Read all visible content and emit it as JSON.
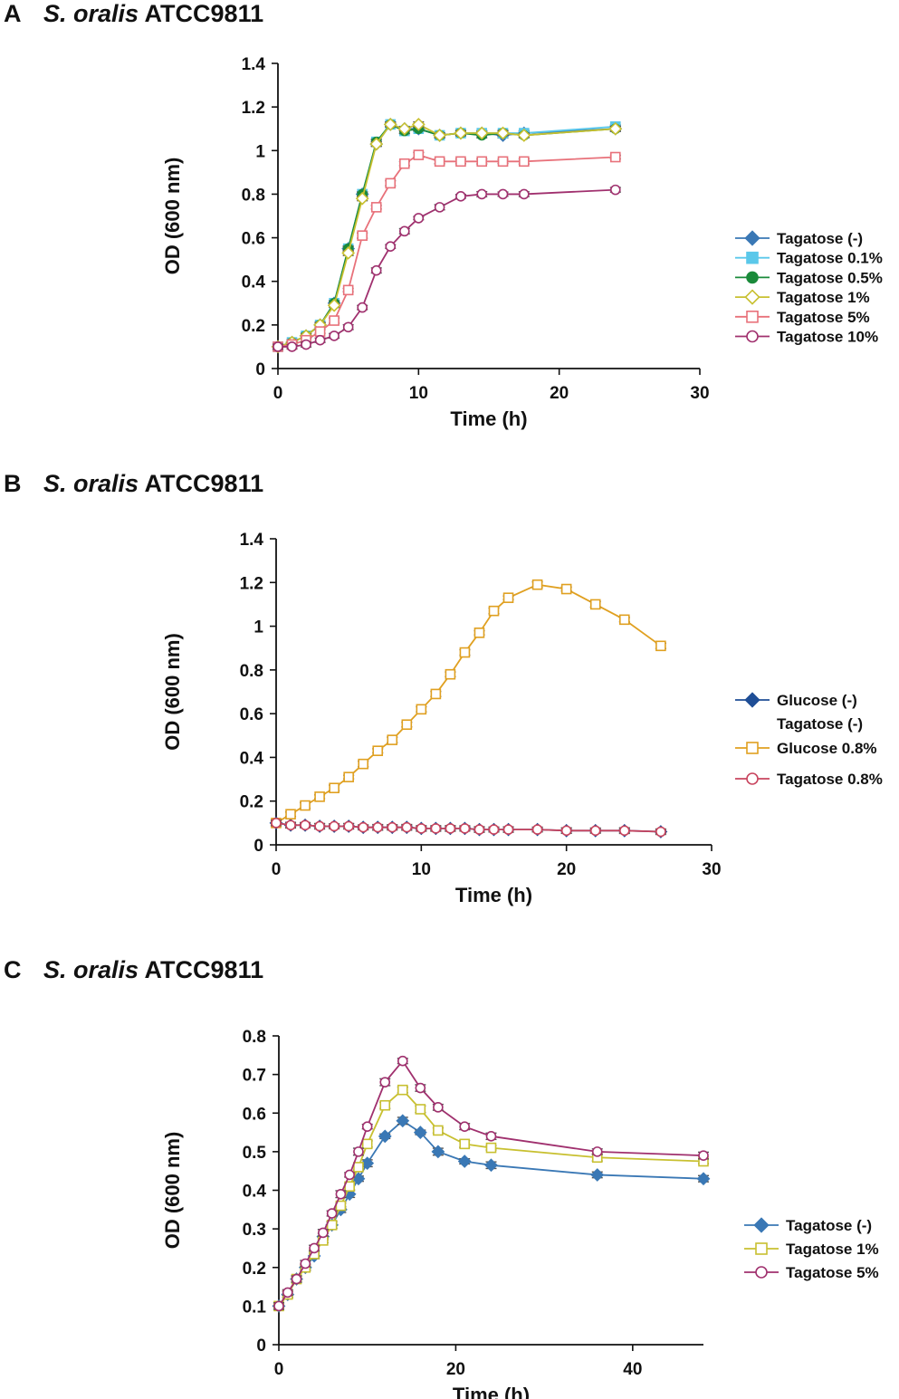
{
  "chart_data": [
    {
      "panel": "A",
      "type": "line",
      "title_species": "S. oralis",
      "title_strain": "ATCC9811",
      "xlabel": "Time (h)",
      "ylabel": "OD (600 nm)",
      "xlim": [
        0,
        30
      ],
      "ylim": [
        0,
        1.4
      ],
      "xticks": [
        0,
        10,
        20,
        30
      ],
      "yticks": [
        0,
        0.2,
        0.4,
        0.6,
        0.8,
        1,
        1.2,
        1.4
      ],
      "ytick_labels": [
        "0",
        "0.2",
        "0.4",
        "0.6",
        "0.8",
        "1",
        "1.2",
        "1.4"
      ],
      "x": [
        0,
        1,
        2,
        3,
        4,
        5,
        6,
        7,
        8,
        9,
        10,
        11.5,
        13,
        14.5,
        16,
        17.5,
        24
      ],
      "series": [
        {
          "name": "Tagatose    (-)",
          "color": "#3a78b5",
          "marker": "diamond",
          "fill": true,
          "values": [
            0.1,
            0.12,
            0.15,
            0.2,
            0.3,
            0.55,
            0.8,
            1.03,
            1.12,
            1.1,
            1.1,
            1.07,
            1.08,
            1.08,
            1.07,
            1.08,
            1.1
          ]
        },
        {
          "name": "Tagatose 0.1%",
          "color": "#5bc8ea",
          "marker": "square",
          "fill": true,
          "values": [
            0.1,
            0.12,
            0.15,
            0.2,
            0.3,
            0.55,
            0.8,
            1.04,
            1.12,
            1.09,
            1.1,
            1.07,
            1.08,
            1.08,
            1.08,
            1.08,
            1.11
          ]
        },
        {
          "name": "Tagatose 0.5%",
          "color": "#1a8a3a",
          "marker": "circle",
          "fill": true,
          "values": [
            0.1,
            0.12,
            0.15,
            0.2,
            0.3,
            0.55,
            0.8,
            1.04,
            1.12,
            1.09,
            1.1,
            1.07,
            1.08,
            1.07,
            1.08,
            1.07,
            1.1
          ]
        },
        {
          "name": "Tagatose    1%",
          "color": "#c8c030",
          "marker": "diamond",
          "fill": false,
          "values": [
            0.1,
            0.12,
            0.15,
            0.2,
            0.29,
            0.53,
            0.78,
            1.03,
            1.12,
            1.1,
            1.12,
            1.07,
            1.08,
            1.08,
            1.08,
            1.07,
            1.1
          ]
        },
        {
          "name": "Tagatose    5%",
          "color": "#e8717a",
          "marker": "square",
          "fill": false,
          "values": [
            0.1,
            0.11,
            0.13,
            0.17,
            0.22,
            0.36,
            0.61,
            0.74,
            0.85,
            0.94,
            0.98,
            0.95,
            0.95,
            0.95,
            0.95,
            0.95,
            0.97
          ]
        },
        {
          "name": "Tagatose  10%",
          "color": "#a0306e",
          "marker": "circle",
          "fill": false,
          "values": [
            0.1,
            0.1,
            0.11,
            0.13,
            0.15,
            0.19,
            0.28,
            0.45,
            0.56,
            0.63,
            0.69,
            0.74,
            0.79,
            0.8,
            0.8,
            0.8,
            0.82
          ]
        }
      ]
    },
    {
      "panel": "B",
      "type": "line",
      "title_species": "S. oralis",
      "title_strain": "ATCC9811",
      "xlabel": "Time (h)",
      "ylabel": "OD (600 nm)",
      "xlim": [
        0,
        30
      ],
      "ylim": [
        0,
        1.4
      ],
      "xticks": [
        0,
        10,
        20,
        30
      ],
      "yticks": [
        0,
        0.2,
        0.4,
        0.6,
        0.8,
        1,
        1.2,
        1.4
      ],
      "ytick_labels": [
        "0",
        "0.2",
        "0.4",
        "0.6",
        "0.8",
        "1",
        "1.2",
        "1.4"
      ],
      "series": [
        {
          "name": "Glucose (-)",
          "name2": "Tagatose (-)",
          "color": "#1f4e96",
          "marker": "diamond",
          "fill": true,
          "x": [
            0,
            1,
            2,
            3,
            4,
            5,
            6,
            7,
            8,
            9,
            10,
            11,
            12,
            13,
            14,
            15,
            16,
            18,
            20,
            22,
            24,
            26.5
          ],
          "values": [
            0.1,
            0.09,
            0.09,
            0.085,
            0.085,
            0.085,
            0.08,
            0.08,
            0.08,
            0.08,
            0.075,
            0.075,
            0.075,
            0.075,
            0.07,
            0.07,
            0.07,
            0.07,
            0.065,
            0.065,
            0.065,
            0.06
          ]
        },
        {
          "name": "Glucose 0.8%",
          "color": "#e0a020",
          "marker": "square",
          "fill": false,
          "x": [
            0,
            1,
            2,
            3,
            4,
            5,
            6,
            7,
            8,
            9,
            10,
            11,
            12,
            13,
            14,
            15,
            16,
            18,
            20,
            22,
            24,
            26.5
          ],
          "values": [
            0.1,
            0.14,
            0.18,
            0.22,
            0.26,
            0.31,
            0.37,
            0.43,
            0.48,
            0.55,
            0.62,
            0.69,
            0.78,
            0.88,
            0.97,
            1.07,
            1.13,
            1.19,
            1.17,
            1.1,
            1.03,
            0.91
          ]
        },
        {
          "name": "Tagatose 0.8%",
          "color": "#c8445e",
          "marker": "circle",
          "fill": false,
          "x": [
            0,
            1,
            2,
            3,
            4,
            5,
            6,
            7,
            8,
            9,
            10,
            11,
            12,
            13,
            14,
            15,
            16,
            18,
            20,
            22,
            24,
            26.5
          ],
          "values": [
            0.1,
            0.09,
            0.09,
            0.085,
            0.085,
            0.085,
            0.08,
            0.08,
            0.08,
            0.08,
            0.075,
            0.075,
            0.075,
            0.075,
            0.07,
            0.07,
            0.07,
            0.07,
            0.065,
            0.065,
            0.065,
            0.06
          ]
        }
      ]
    },
    {
      "panel": "C",
      "type": "line",
      "title_species": "S. oralis",
      "title_strain": "ATCC9811",
      "xlabel": "Time (h)",
      "ylabel": "OD (600 nm)",
      "xlim": [
        0,
        48
      ],
      "ylim": [
        0,
        0.8
      ],
      "xticks": [
        0,
        20,
        40
      ],
      "yticks": [
        0,
        0.1,
        0.2,
        0.3,
        0.4,
        0.5,
        0.6,
        0.7,
        0.8
      ],
      "ytick_labels": [
        "0",
        "0.1",
        "0.2",
        "0.3",
        "0.4",
        "0.5",
        "0.6",
        "0.7",
        "0.8"
      ],
      "x": [
        0,
        1,
        2,
        3,
        4,
        5,
        6,
        7,
        8,
        9,
        10,
        12,
        14,
        16,
        18,
        21,
        24,
        36,
        48
      ],
      "series": [
        {
          "name": "Tagatose (-)",
          "color": "#3a78b5",
          "marker": "diamond",
          "fill": true,
          "values": [
            0.1,
            0.13,
            0.17,
            0.2,
            0.23,
            0.28,
            0.31,
            0.35,
            0.39,
            0.43,
            0.47,
            0.54,
            0.58,
            0.55,
            0.5,
            0.475,
            0.465,
            0.44,
            0.43
          ]
        },
        {
          "name": "Tagatose 1%",
          "color": "#c8c030",
          "marker": "square",
          "fill": false,
          "values": [
            0.1,
            0.13,
            0.17,
            0.2,
            0.235,
            0.27,
            0.31,
            0.36,
            0.41,
            0.46,
            0.52,
            0.62,
            0.66,
            0.61,
            0.555,
            0.52,
            0.51,
            0.485,
            0.475
          ]
        },
        {
          "name": "Tagatose 5%",
          "color": "#a0306e",
          "marker": "circle",
          "fill": false,
          "values": [
            0.1,
            0.135,
            0.17,
            0.21,
            0.25,
            0.29,
            0.34,
            0.39,
            0.44,
            0.5,
            0.565,
            0.68,
            0.735,
            0.665,
            0.615,
            0.565,
            0.54,
            0.5,
            0.49
          ]
        }
      ]
    }
  ]
}
